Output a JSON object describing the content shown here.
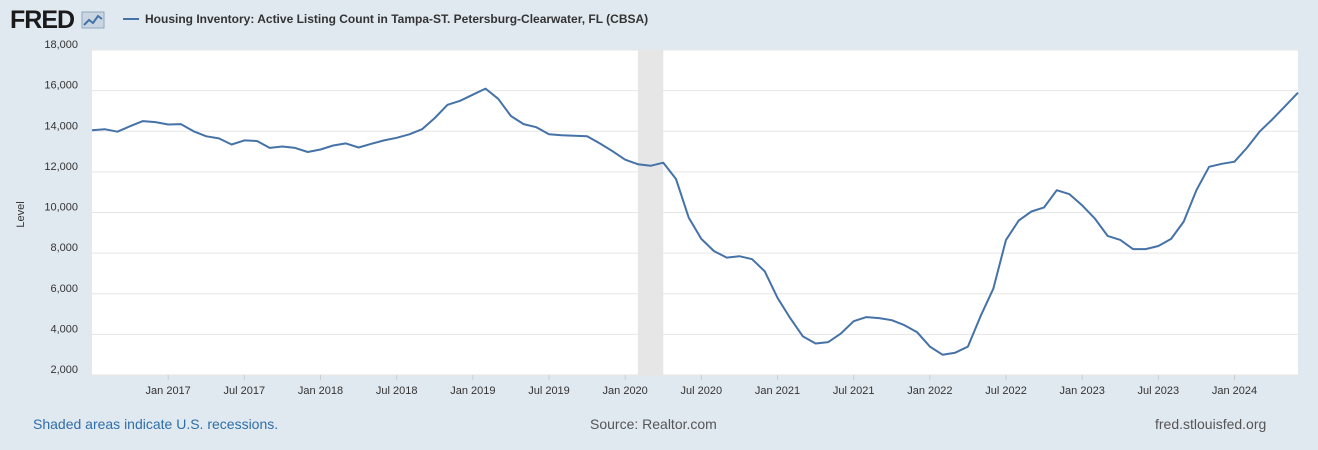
{
  "logo": {
    "text": "FRED"
  },
  "chart_data": {
    "type": "line",
    "title": "Housing Inventory: Active Listing Count in Tampa-ST. Petersburg-Clearwater, FL (CBSA)",
    "xlabel": "",
    "ylabel": "Level",
    "ylim": [
      2000,
      18000
    ],
    "yticks": [
      2000,
      4000,
      6000,
      8000,
      10000,
      12000,
      14000,
      16000,
      18000
    ],
    "ytick_labels": [
      "2,000",
      "4,000",
      "6,000",
      "8,000",
      "10,000",
      "12,000",
      "14,000",
      "16,000",
      "18,000"
    ],
    "xlim": [
      "2016-07",
      "2024-06"
    ],
    "xticks": [
      "2017-01",
      "2017-07",
      "2018-01",
      "2018-07",
      "2019-01",
      "2019-07",
      "2020-01",
      "2020-07",
      "2021-01",
      "2021-07",
      "2022-01",
      "2022-07",
      "2023-01",
      "2023-07",
      "2024-01"
    ],
    "xtick_labels": [
      "Jan 2017",
      "Jul 2017",
      "Jan 2018",
      "Jul 2018",
      "Jan 2019",
      "Jul 2019",
      "Jan 2020",
      "Jul 2020",
      "Jan 2021",
      "Jul 2021",
      "Jan 2022",
      "Jul 2022",
      "Jan 2023",
      "Jul 2023",
      "Jan 2024"
    ],
    "grid": true,
    "legend_placement": "top-left",
    "recession": {
      "start": "2020-02",
      "end": "2020-04"
    },
    "colors": {
      "line": "#4572a7",
      "recession": "#e6e6e6",
      "grid": "#e6e6e6",
      "background": "#e1e9f0",
      "plot": "#ffffff"
    },
    "series": [
      {
        "name": "Housing Inventory: Active Listing Count in Tampa-ST. Petersburg-Clearwater, FL (CBSA)",
        "x": [
          "2016-07",
          "2016-08",
          "2016-09",
          "2016-10",
          "2016-11",
          "2016-12",
          "2017-01",
          "2017-02",
          "2017-03",
          "2017-04",
          "2017-05",
          "2017-06",
          "2017-07",
          "2017-08",
          "2017-09",
          "2017-10",
          "2017-11",
          "2017-12",
          "2018-01",
          "2018-02",
          "2018-03",
          "2018-04",
          "2018-05",
          "2018-06",
          "2018-07",
          "2018-08",
          "2018-09",
          "2018-10",
          "2018-11",
          "2018-12",
          "2019-01",
          "2019-02",
          "2019-03",
          "2019-04",
          "2019-05",
          "2019-06",
          "2019-07",
          "2019-08",
          "2019-09",
          "2019-10",
          "2019-11",
          "2019-12",
          "2020-01",
          "2020-02",
          "2020-03",
          "2020-04",
          "2020-05",
          "2020-06",
          "2020-07",
          "2020-08",
          "2020-09",
          "2020-10",
          "2020-11",
          "2020-12",
          "2021-01",
          "2021-02",
          "2021-03",
          "2021-04",
          "2021-05",
          "2021-06",
          "2021-07",
          "2021-08",
          "2021-09",
          "2021-10",
          "2021-11",
          "2021-12",
          "2022-01",
          "2022-02",
          "2022-03",
          "2022-04",
          "2022-05",
          "2022-06",
          "2022-07",
          "2022-08",
          "2022-09",
          "2022-10",
          "2022-11",
          "2022-12",
          "2023-01",
          "2023-02",
          "2023-03",
          "2023-04",
          "2023-05",
          "2023-06",
          "2023-07",
          "2023-08",
          "2023-09",
          "2023-10",
          "2023-11",
          "2023-12",
          "2024-01",
          "2024-02",
          "2024-03",
          "2024-04",
          "2024-05",
          "2024-06"
        ],
        "values": [
          14050,
          14100,
          13980,
          14250,
          14500,
          14450,
          14330,
          14350,
          14000,
          13750,
          13650,
          13350,
          13550,
          13520,
          13180,
          13250,
          13180,
          12980,
          13100,
          13300,
          13400,
          13200,
          13380,
          13550,
          13680,
          13850,
          14100,
          14650,
          15300,
          15500,
          15800,
          16100,
          15600,
          14750,
          14350,
          14200,
          13850,
          13800,
          13780,
          13750,
          13400,
          13020,
          12600,
          12380,
          12300,
          12450,
          11650,
          9750,
          8700,
          8100,
          7780,
          7850,
          7700,
          7100,
          5800,
          4800,
          3900,
          3550,
          3620,
          4050,
          4650,
          4850,
          4800,
          4700,
          4450,
          4100,
          3400,
          3000,
          3100,
          3400,
          4900,
          6250,
          8650,
          9600,
          10050,
          10250,
          11100,
          10900,
          10350,
          9700,
          8850,
          8650,
          8200,
          8200,
          8350,
          8700,
          9550,
          11100,
          12250,
          12400,
          12500,
          13200,
          14000,
          14600,
          15250,
          15900
        ]
      }
    ]
  },
  "footer": {
    "left": "Shaded areas indicate U.S. recessions.",
    "middle": "Source: Realtor.com",
    "right": "fred.stlouisfed.org"
  }
}
